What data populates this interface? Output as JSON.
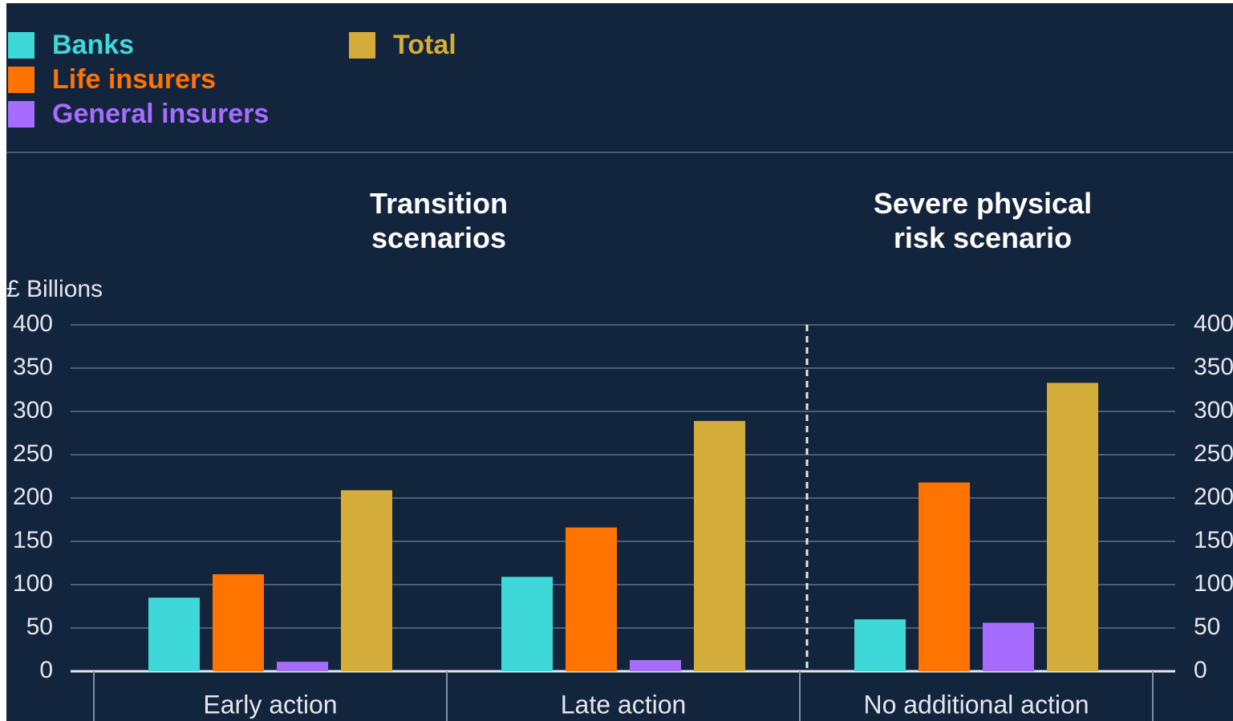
{
  "chart_data": {
    "type": "bar",
    "ylabel": "£ Billions",
    "group_labels": [
      "Transition scenarios",
      "Severe physical risk scenario"
    ],
    "categories": [
      "Early action",
      "Late action",
      "No additional action"
    ],
    "series": [
      {
        "name": "Banks",
        "color": "#3fd8d8",
        "values": [
          85,
          109,
          60
        ]
      },
      {
        "name": "Life insurers",
        "color": "#ff7300",
        "values": [
          112,
          166,
          218
        ]
      },
      {
        "name": "General insurers",
        "color": "#a56cff",
        "values": [
          11,
          13,
          56
        ]
      },
      {
        "name": "Total",
        "color": "#d4ac3a",
        "values": [
          209,
          289,
          333
        ]
      }
    ],
    "ylim": [
      0,
      400
    ],
    "yticks": [
      0,
      50,
      100,
      150,
      200,
      250,
      300,
      350,
      400
    ],
    "grid": true
  }
}
